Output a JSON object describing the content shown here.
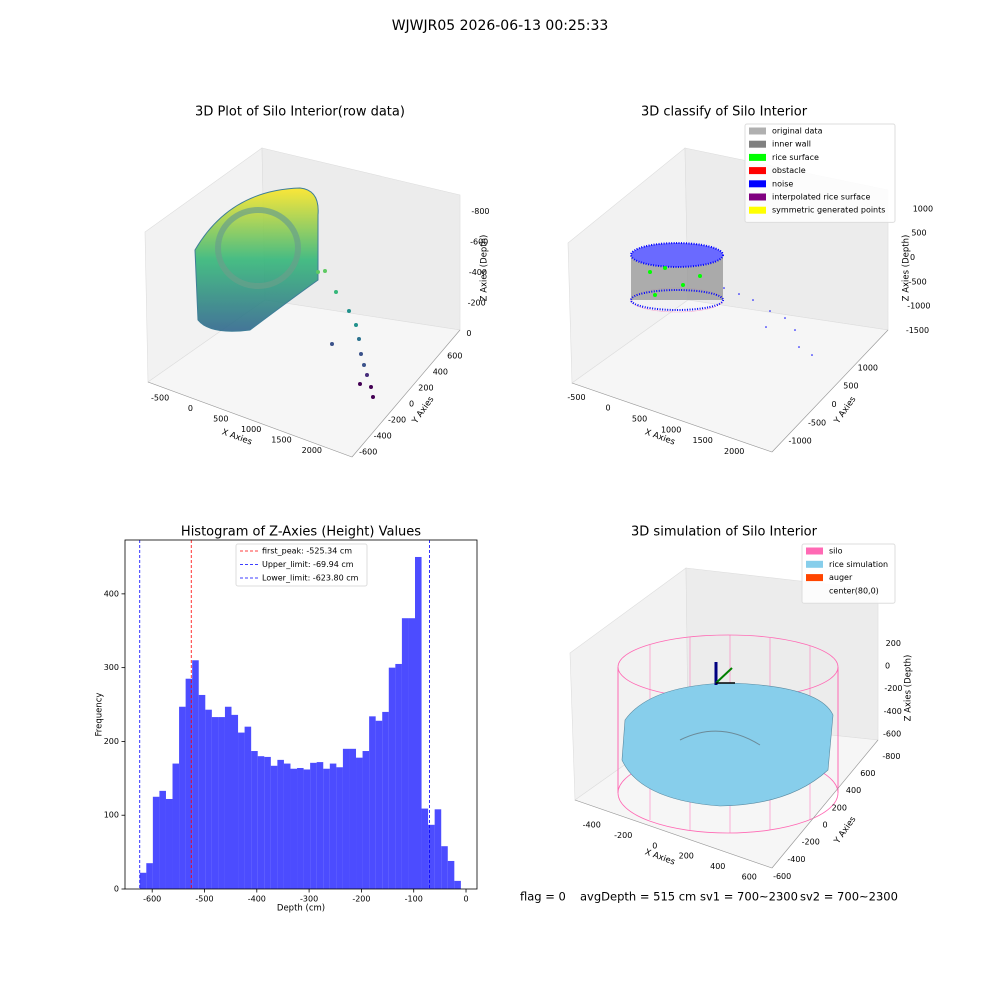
{
  "suptitle": "WJWJR05 2026-06-13 00:25:33",
  "footer": [
    "flag = 0",
    "avgDepth = 515 cm",
    "sv1 = 700~2300",
    "sv2 = 700~2300"
  ],
  "chart_data": [
    {
      "type": "scatter3d",
      "title": "3D Plot of Silo Interior(row data)",
      "xlabel": "X Axies",
      "ylabel": "Y Axies",
      "zlabel": "Z Axies (Depth)",
      "xlim": [
        -650,
        2250
      ],
      "xticks": [
        -500,
        0,
        500,
        1000,
        1500,
        2000
      ],
      "ylim": [
        -700,
        700
      ],
      "yticks": [
        -600,
        -400,
        -200,
        0,
        200,
        400,
        600
      ],
      "zlim": [
        -900,
        50
      ],
      "zticks": [
        -800,
        -600,
        -400,
        -200,
        0
      ]
    },
    {
      "type": "scatter3d",
      "title": "3D classify of Silo Interior",
      "xlabel": "X Axies",
      "ylabel": "Y Axies",
      "zlabel": "Z Axies (Depth)",
      "xlim": [
        -650,
        2250
      ],
      "xticks": [
        -500,
        0,
        500,
        1000,
        1500,
        2000
      ],
      "ylim": [
        -1300,
        1300
      ],
      "yticks": [
        -1000,
        -500,
        0,
        500,
        1000
      ],
      "zlim": [
        -1800,
        1100
      ],
      "zticks": [
        -1500,
        -1000,
        -500,
        0,
        500,
        1000
      ],
      "legend": [
        {
          "name": "original data",
          "color": "#b0b0b0"
        },
        {
          "name": "inner wall",
          "color": "#808080"
        },
        {
          "name": "rice surface",
          "color": "#00ff00"
        },
        {
          "name": "obstacle",
          "color": "#ff0000"
        },
        {
          "name": "noise",
          "color": "#0000ff"
        },
        {
          "name": "interpolated rice surface",
          "color": "#800080"
        },
        {
          "name": "symmetric generated points",
          "color": "#ffff00"
        }
      ]
    },
    {
      "type": "histogram",
      "title": "Histogram of Z-Axies (Height) Values",
      "xlabel": "Depth (cm)",
      "ylabel": "Frequency",
      "color": "#0000ff",
      "alpha": 0.7,
      "bins": [
        -623.8,
        -611.27,
        -598.74,
        -586.21,
        -573.68,
        -561.15,
        -548.62,
        -536.09,
        -523.56,
        -511.03,
        -498.5,
        -485.97,
        -473.44,
        -460.91,
        -448.38,
        -435.85,
        -423.32,
        -410.79,
        -398.26,
        -385.73,
        -373.2,
        -360.67,
        -348.14,
        -335.61,
        -323.08,
        -310.55,
        -298.02,
        -285.49,
        -272.96,
        -260.43,
        -247.9,
        -235.37,
        -222.84,
        -210.31,
        -197.78,
        -185.25,
        -172.72,
        -160.19,
        -147.66,
        -135.13,
        -122.6,
        -110.07,
        -97.54,
        -85.01,
        -72.48,
        -59.95,
        -47.42,
        -34.89,
        -22.36,
        -9.83
      ],
      "counts": [
        22,
        35,
        125,
        133,
        122,
        170,
        247,
        285,
        310,
        263,
        243,
        233,
        233,
        247,
        236,
        212,
        220,
        187,
        180,
        179,
        167,
        175,
        170,
        163,
        164,
        162,
        171,
        172,
        163,
        170,
        165,
        190,
        190,
        178,
        187,
        234,
        228,
        240,
        300,
        305,
        367,
        367,
        450,
        109,
        87,
        108,
        58,
        38,
        11
      ],
      "xlim": [
        -652,
        21
      ],
      "xticks": [
        -600,
        -500,
        -400,
        -300,
        -200,
        -100,
        0
      ],
      "ylim": [
        0,
        473
      ],
      "yticks": [
        0,
        100,
        200,
        300,
        400
      ],
      "vlines": [
        {
          "label": "first_peak: -525.34 cm",
          "value": -525.34,
          "color": "#ff0000"
        },
        {
          "label": "Upper_limit: -69.94 cm",
          "value": -69.94,
          "color": "#0000ff"
        },
        {
          "label": "Lower_limit: -623.80 cm",
          "value": -623.8,
          "color": "#0000ff"
        }
      ]
    },
    {
      "type": "surface3d",
      "title": "3D simulation of Silo Interior",
      "xlabel": "X Axies",
      "ylabel": "Y Axies",
      "zlabel": "Z Axies (Depth)",
      "xlim": [
        -500,
        700
      ],
      "xticks": [
        -400,
        -200,
        0,
        200,
        400,
        600
      ],
      "ylim": [
        -700,
        700
      ],
      "yticks": [
        -600,
        -400,
        -200,
        0,
        200,
        400,
        600
      ],
      "zlim": [
        -900,
        300
      ],
      "zticks": [
        -800,
        -600,
        -400,
        -200,
        0,
        200
      ],
      "legend": [
        {
          "name": "silo",
          "color": "#ff69b4"
        },
        {
          "name": "rice simulation",
          "color": "#87ceeb"
        },
        {
          "name": "auger",
          "color": "#ff4500"
        },
        {
          "name": "center(80,0)"
        }
      ]
    }
  ]
}
